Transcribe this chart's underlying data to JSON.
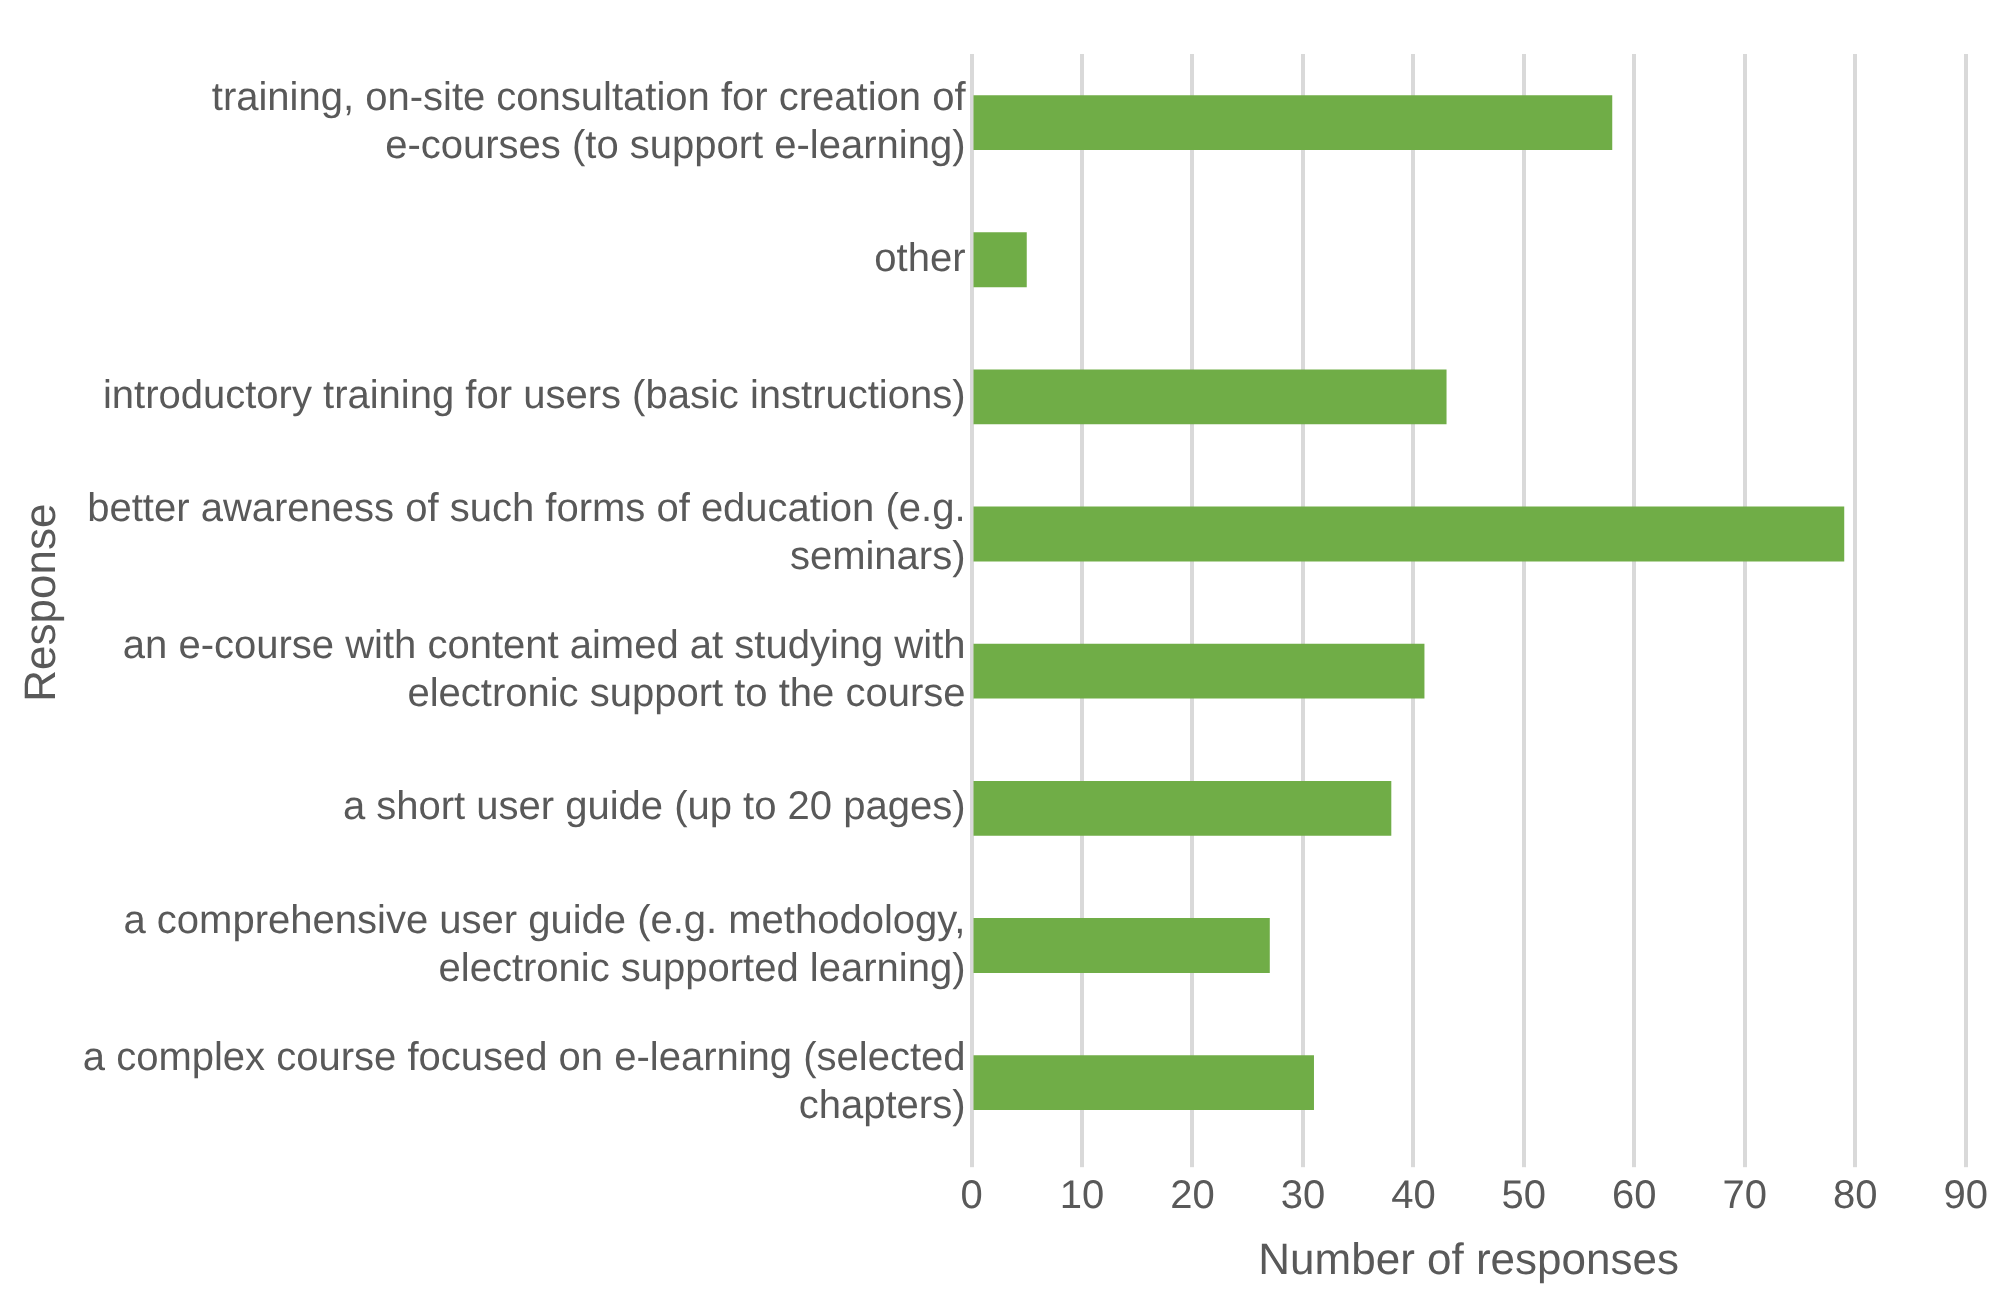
{
  "chart_data": {
    "type": "bar",
    "orientation": "horizontal",
    "xlabel": "Number of responses",
    "ylabel": "Response",
    "categories": [
      "training, on-site consultation for creation of e-courses (to support e-learning)",
      "other",
      "introductory training for users (basic instructions)",
      "better awareness of such forms of education (e.g. seminars)",
      "an e-course with content aimed at studying with electronic support to the course",
      "a short user guide (up to 20 pages)",
      "a comprehensive user guide (e.g. methodology, electronic supported learning)",
      "a complex course focused on e-learning (selected chapters)"
    ],
    "values": [
      58,
      5,
      43,
      79,
      41,
      38,
      27,
      31
    ],
    "color": "#70ad47",
    "xlim": [
      0,
      90
    ],
    "xticks": [
      0,
      10,
      20,
      30,
      40,
      50,
      60,
      70,
      80,
      90
    ],
    "grid": "x"
  }
}
